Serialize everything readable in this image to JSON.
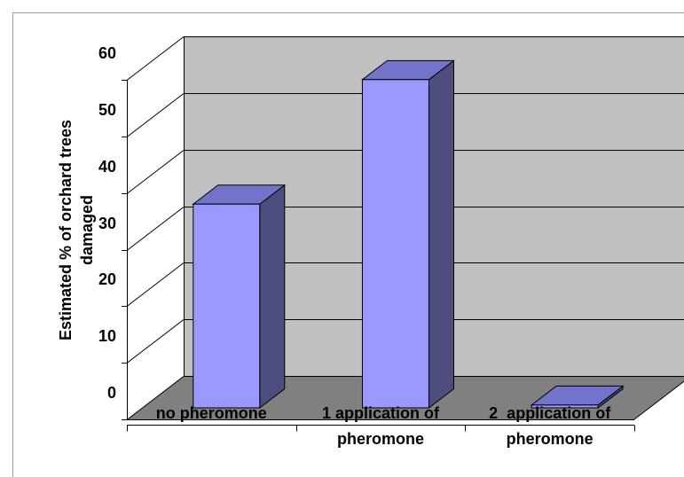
{
  "chart_data": {
    "type": "bar",
    "three_d": true,
    "categories": [
      "no pheromone",
      "1 application of pheromone",
      "2  application of pheromone"
    ],
    "values": [
      36,
      58,
      0.5
    ],
    "ylabel": "Estimated % of orchard trees damaged",
    "ylim": [
      0,
      60
    ],
    "yticks": [
      0,
      10,
      20,
      30,
      40,
      50,
      60
    ],
    "grid": true
  },
  "colors": {
    "bar_front": "#9999FF",
    "bar_top": "#7373CC",
    "bar_side": "#4D4D80",
    "back_wall": "#C0C0C0",
    "side_wall": "#FFFFFF",
    "floor": "#808080",
    "line": "#000000",
    "frame": "#999999"
  }
}
